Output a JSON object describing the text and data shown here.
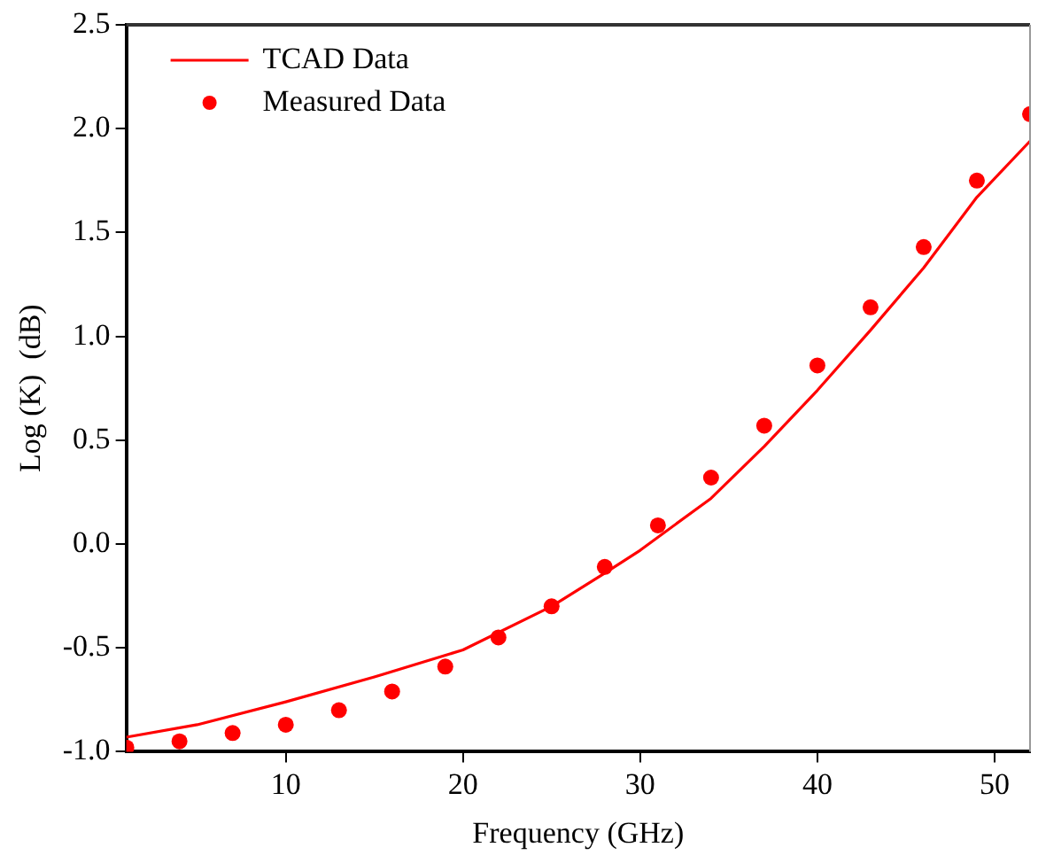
{
  "chart_data": {
    "type": "line",
    "xlabel": "Frequency (GHz)",
    "ylabel": "Log (K)  (dB)",
    "xlim": [
      1,
      52
    ],
    "xticks": [
      10,
      20,
      30,
      40,
      50
    ],
    "ylim": [
      -1.0,
      2.5
    ],
    "yticks": [
      {
        "value": -1.0,
        "label": "-1.0"
      },
      {
        "value": -0.5,
        "label": "-0.5"
      },
      {
        "value": 0,
        "label": "0.0"
      },
      {
        "value": 0.5,
        "label": "0.5"
      },
      {
        "value": 1.0,
        "label": "1.0"
      },
      {
        "value": 1.5,
        "label": "1.5"
      },
      {
        "value": 2.0,
        "label": "2.0"
      },
      {
        "value": 2.5,
        "label": "2.5"
      }
    ],
    "grid": false,
    "legend": "top left",
    "series": [
      {
        "name": "TCAD Data",
        "color": "#ff0000",
        "marker": "none",
        "line_style": "solid",
        "x": [
          1,
          5,
          10,
          15,
          20,
          25,
          28,
          30,
          34,
          37,
          40,
          43,
          46,
          49,
          52
        ],
        "values": [
          -0.93,
          -0.87,
          -0.76,
          -0.64,
          -0.51,
          -0.3,
          -0.14,
          -0.03,
          0.22,
          0.47,
          0.74,
          1.03,
          1.33,
          1.67,
          1.94
        ]
      },
      {
        "name": "Measured Data",
        "type": "scatter",
        "color": "#ff0000",
        "marker": "circle",
        "x": [
          1,
          4,
          7,
          10,
          13,
          16,
          19,
          22,
          25,
          28,
          31,
          34,
          37,
          40,
          43,
          46,
          49,
          52
        ],
        "values": [
          -0.98,
          -0.95,
          -0.91,
          -0.87,
          -0.8,
          -0.71,
          -0.59,
          -0.45,
          -0.3,
          -0.11,
          0.09,
          0.32,
          0.57,
          0.86,
          1.14,
          1.43,
          1.75,
          2.07
        ]
      }
    ]
  }
}
